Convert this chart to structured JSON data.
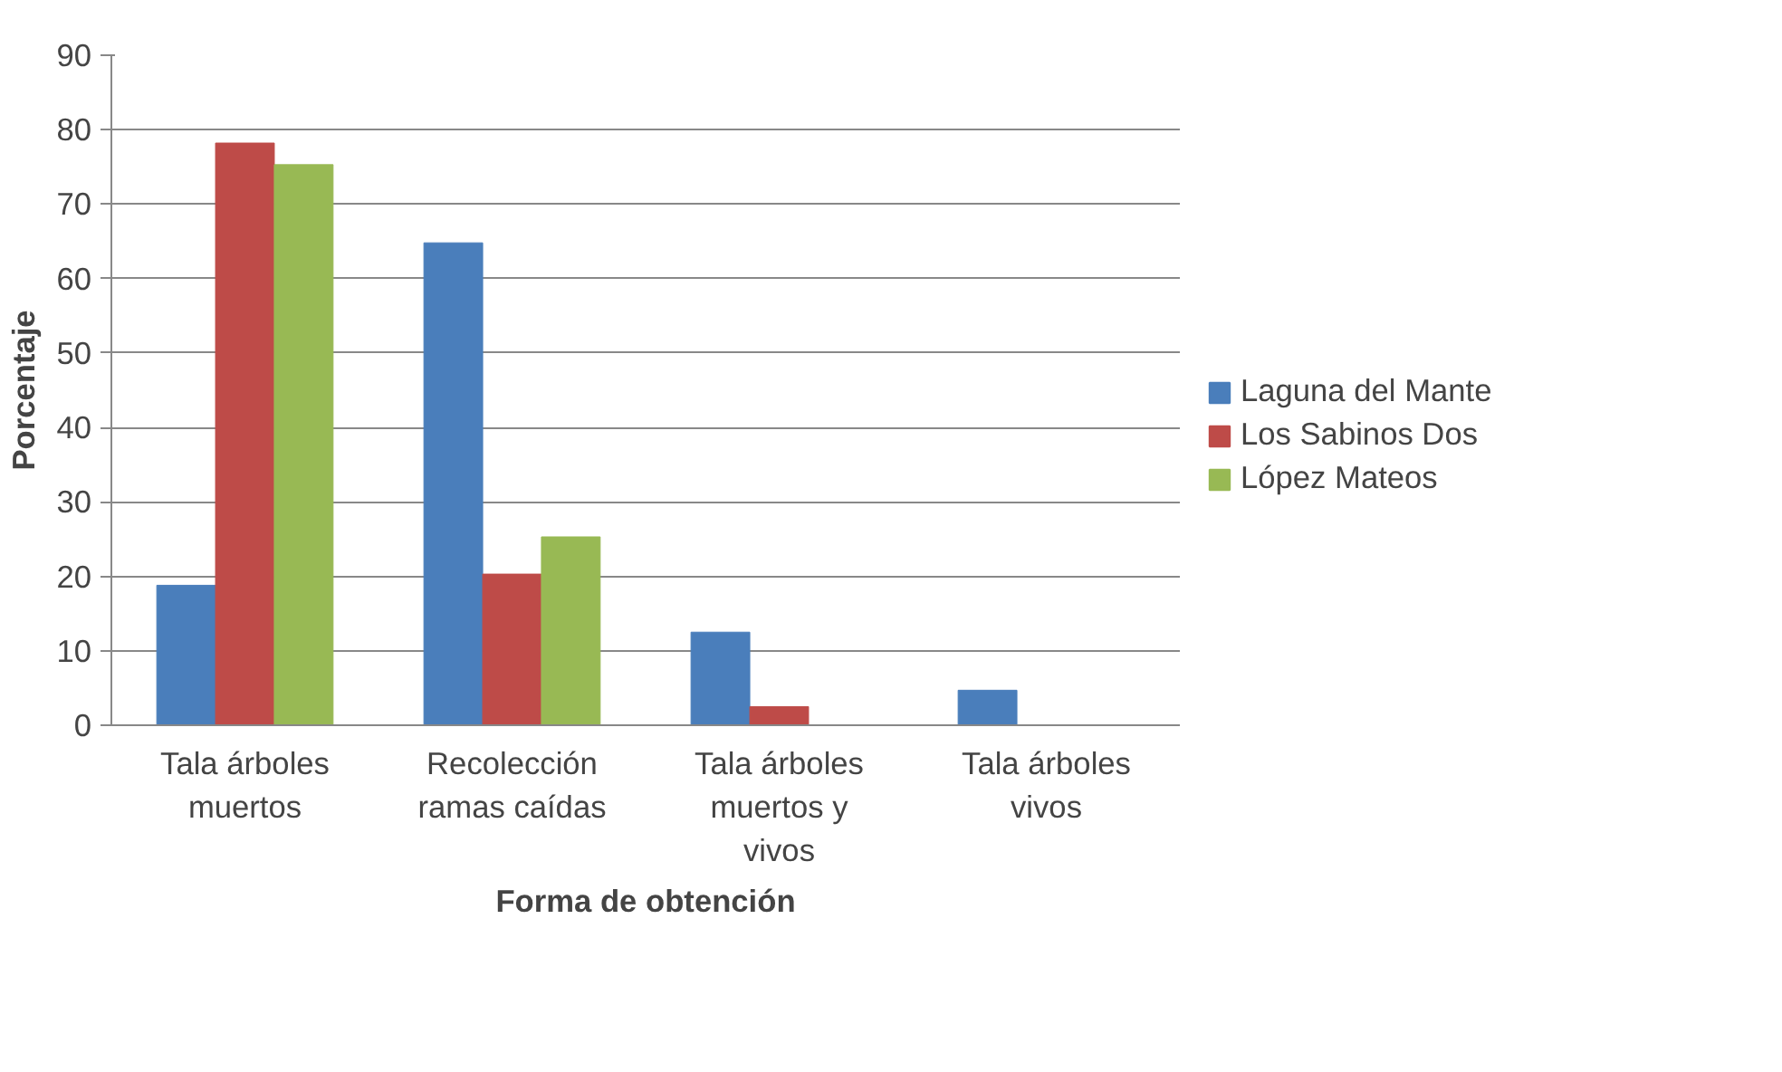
{
  "chart_data": {
    "type": "bar",
    "xlabel": "Forma de obtención",
    "ylabel": "Porcentaje",
    "categories": [
      "Tala árboles muertos",
      "Recolección ramas caídas",
      "Tala árboles muertos y vivos",
      "Tala árboles vivos"
    ],
    "series": [
      {
        "name": "Laguna del Mante",
        "color": "#4a7ebb",
        "values": [
          18.8,
          64.8,
          12.5,
          4.7
        ]
      },
      {
        "name": "Los Sabinos Dos",
        "color": "#be4b48",
        "values": [
          78.2,
          20.3,
          2.5,
          0
        ]
      },
      {
        "name": "López Mateos",
        "color": "#98b954",
        "values": [
          75.3,
          25.3,
          0,
          0
        ]
      }
    ],
    "ylim": [
      0,
      90
    ],
    "yticks": [
      0,
      10,
      20,
      30,
      40,
      50,
      60,
      70,
      80,
      90
    ],
    "grid": "y",
    "legend": "right"
  }
}
